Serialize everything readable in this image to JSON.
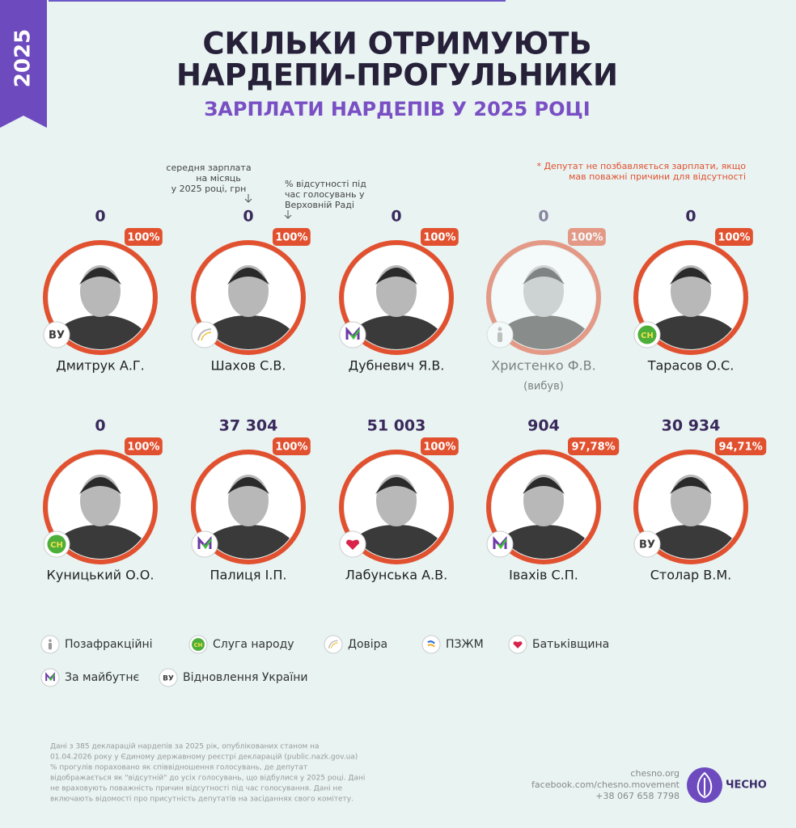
{
  "header": {
    "year": "2025",
    "title_lines": [
      "СКІЛЬКИ ОТРИМУЮТЬ",
      "НАРДЕПИ-ПРОГУЛЬНИКИ"
    ],
    "subtitle": "ЗАРПЛАТИ НАРДЕПІВ У 2025 РОЦІ"
  },
  "notes": {
    "salary_lines": [
      "середня зарплата",
      "на місяць",
      "у 2025 році, грн"
    ],
    "absence_lines": [
      "% відсутності під",
      "час голосувань у",
      "Верховній Раді"
    ],
    "asterisk_lines": [
      "* Депутат не позбавляється зарплати, якщо",
      "мав поважні причини для відсутності"
    ]
  },
  "deputies": [
    {
      "salary": "0",
      "absence": "100%",
      "name": "Дмитрук А.Г."
    },
    {
      "salary": "0",
      "absence": "100%",
      "name": "Шахов С.В."
    },
    {
      "salary": "0",
      "absence": "100%",
      "name": "Дубневич Я.В."
    },
    {
      "salary": "0",
      "absence": "100%",
      "name": "Христенко Ф.В.",
      "note": "(вибув)"
    },
    {
      "salary": "0",
      "absence": "100%",
      "name": "Тарасов О.С."
    },
    {
      "salary": "0",
      "absence": "100%",
      "name": "Куницький О.О."
    },
    {
      "salary": "37 304",
      "absence": "100%",
      "name": "Палиця  І.П."
    },
    {
      "salary": "51 003",
      "absence": "100%",
      "name": "Лабунська А.В."
    },
    {
      "salary": "904",
      "absence": "97,78%",
      "name": "Іваxів С.П."
    },
    {
      "salary": "30 934",
      "absence": "94,71%",
      "name": "Столар В.М."
    }
  ],
  "legend": {
    "items": [
      {
        "label": "Позафракційні"
      },
      {
        "label": "Слуга народу",
        "badge": "СН"
      },
      {
        "label": "Довіра"
      },
      {
        "label": "ПЗЖМ"
      },
      {
        "label": "Батьківщина"
      },
      {
        "label": "За майбутнє"
      },
      {
        "label": "Відновлення України",
        "badge": "ВУ"
      }
    ]
  },
  "footer": {
    "source_lines": [
      "Дані з 385 декларацій нардепів за 2025 рік, опублікованих станом на",
      "01.04.2026 року у Єдиному державному реєстрі декларацій (public.nazk.gov.ua)",
      "% прогулів пораховано як співвідношення голосувань, де депутат",
      "відображається як \"відсутній\" до усіх голосувань, що відбулися у 2025 році. Дані",
      "не враховують поважність причин відсутності під час голосування. Дані не",
      "включають відомості про присутність депутатів на засіданнях свого комітету."
    ],
    "contacts": [
      "chesno.org",
      "facebook.com/chesno.movement",
      "+38 067 658 7798"
    ],
    "logo": "ЧЕСНО"
  }
}
